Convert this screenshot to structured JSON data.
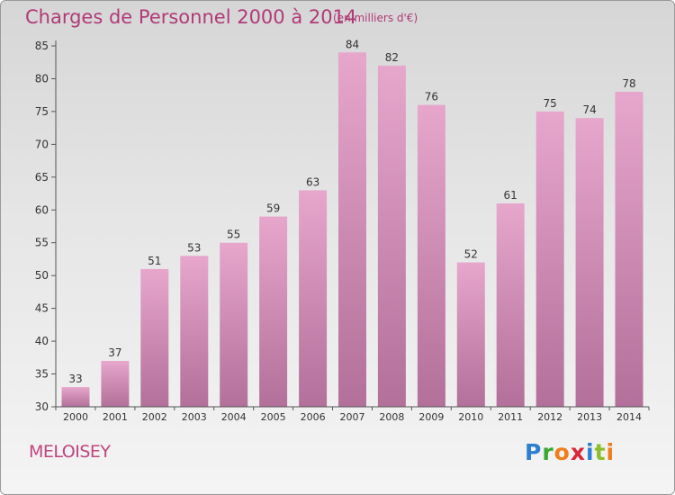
{
  "header": {
    "title": "Charges de Personnel 2000 à 2014",
    "subtitle": "(en milliers d'€)"
  },
  "footer": {
    "commune": "MELOISEY",
    "brand_letters": [
      {
        "char": "P",
        "color": "#2e7fd1"
      },
      {
        "char": "r",
        "color": "#3aa835"
      },
      {
        "char": "o",
        "color": "#f07d1a"
      },
      {
        "char": "x",
        "color": "#d8283a"
      },
      {
        "char": "i",
        "color": "#2e7fd1"
      },
      {
        "char": "t",
        "color": "#8bbf2a"
      },
      {
        "char": "i",
        "color": "#f07d1a"
      }
    ]
  },
  "colors": {
    "bar_top": "#e7a6cc",
    "bar_bottom": "#b2709a",
    "text": "#333333",
    "axis": "#555555"
  },
  "chart_data": {
    "type": "bar",
    "title": "Charges de Personnel 2000 à 2014",
    "subtitle": "(en milliers d'€)",
    "categories": [
      "2000",
      "2001",
      "2002",
      "2003",
      "2004",
      "2005",
      "2006",
      "2007",
      "2008",
      "2009",
      "2010",
      "2011",
      "2012",
      "2013",
      "2014"
    ],
    "values": [
      33,
      37,
      51,
      53,
      55,
      59,
      63,
      84,
      82,
      76,
      52,
      61,
      75,
      74,
      78
    ],
    "ylim": [
      30,
      85
    ],
    "yticks": [
      30,
      35,
      40,
      45,
      50,
      55,
      60,
      65,
      70,
      75,
      80,
      85
    ],
    "grid": false,
    "data_labels": true
  }
}
